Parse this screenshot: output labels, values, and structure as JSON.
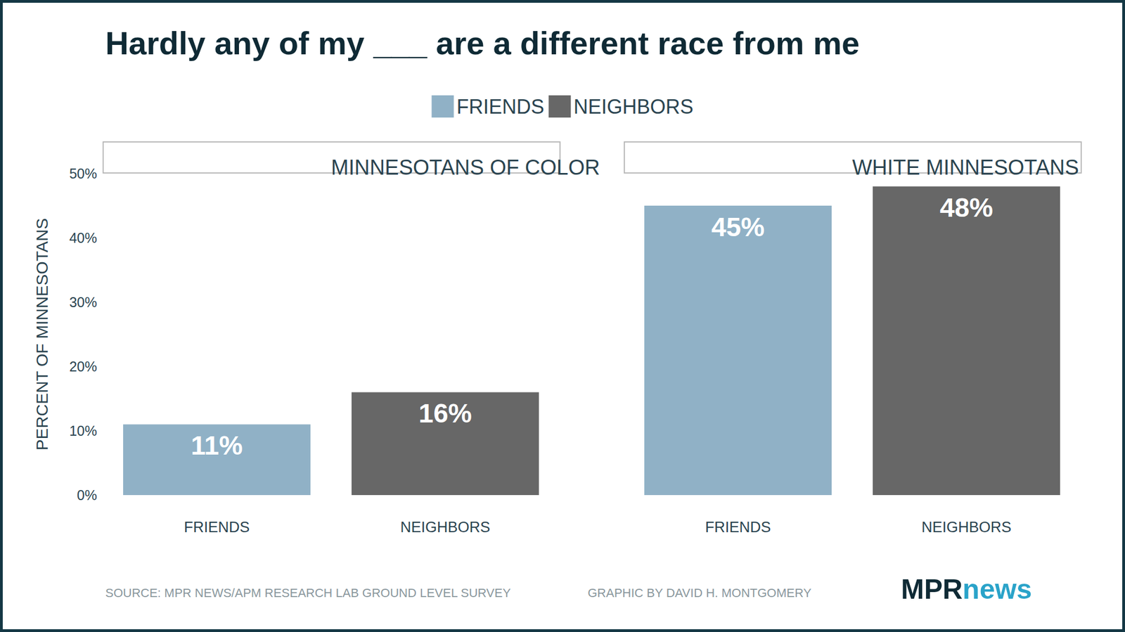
{
  "title": "Hardly any of my ___ are a different race from me",
  "source": "SOURCE: MPR NEWS/APM RESEARCH LAB GROUND LEVEL SURVEY",
  "credit": "GRAPHIC BY DAVID H. MONTGOMERY",
  "logo": [
    "MPR",
    "news"
  ],
  "legend": "top",
  "chart_data": [
    {
      "type": "bar",
      "title": "MINNESOTANS OF COLOR",
      "ylabel": "PERCENT OF MINNESOTANS",
      "categories": [
        "FRIENDS",
        "NEIGHBORS"
      ],
      "series": [
        {
          "name": "FRIENDS",
          "color": "#90b1c6",
          "values": [
            11,
            null
          ],
          "value_labels": [
            "11%",
            null
          ]
        },
        {
          "name": "NEIGHBORS",
          "color": "#676767",
          "values": [
            null,
            16
          ],
          "value_labels": [
            null,
            "16%"
          ]
        }
      ],
      "ylim": [
        0,
        50
      ],
      "yticks": [
        {
          "value": 0,
          "label": "0%"
        },
        {
          "value": 10,
          "label": "10%"
        },
        {
          "value": 20,
          "label": "20%"
        },
        {
          "value": 30,
          "label": "30%"
        },
        {
          "value": 40,
          "label": "40%"
        },
        {
          "value": 50,
          "label": "50%"
        }
      ],
      "grid": false,
      "data_labels": true
    },
    {
      "type": "bar",
      "title": "WHITE MINNESOTANS",
      "categories": [
        "FRIENDS",
        "NEIGHBORS"
      ],
      "series": [
        {
          "name": "FRIENDS",
          "color": "#90b1c6",
          "values": [
            45,
            null
          ],
          "value_labels": [
            "45%",
            null
          ]
        },
        {
          "name": "NEIGHBORS",
          "color": "#676767",
          "values": [
            null,
            48
          ],
          "value_labels": [
            null,
            "48%"
          ]
        }
      ],
      "ylim": [
        0,
        50
      ],
      "yticks": [
        {
          "value": 0,
          "label": "0%"
        },
        {
          "value": 10,
          "label": "10%"
        },
        {
          "value": 20,
          "label": "20%"
        },
        {
          "value": 30,
          "label": "30%"
        },
        {
          "value": 40,
          "label": "40%"
        },
        {
          "value": 50,
          "label": "50%"
        }
      ],
      "tick_labels": "x",
      "grid": false,
      "data_labels": true
    }
  ]
}
